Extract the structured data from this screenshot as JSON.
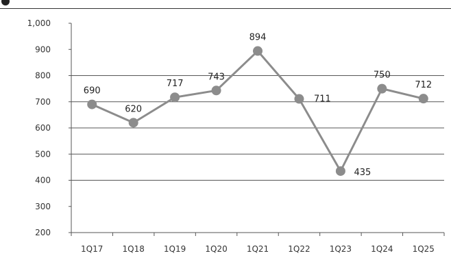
{
  "chart_data": {
    "type": "line",
    "title": "",
    "xlabel": "",
    "ylabel": "",
    "categories": [
      "1Q17",
      "1Q18",
      "1Q19",
      "1Q20",
      "1Q21",
      "1Q22",
      "1Q23",
      "1Q24",
      "1Q25"
    ],
    "series": [
      {
        "values": [
          690,
          620,
          717,
          743,
          894,
          711,
          435,
          750,
          712
        ]
      }
    ],
    "data_labels": [
      "690",
      "620",
      "717",
      "743",
      "894",
      "711",
      "435",
      "750",
      "712"
    ],
    "ylim": [
      200,
      1000
    ],
    "yticks": [
      200,
      300,
      400,
      500,
      600,
      700,
      800,
      900,
      1000
    ],
    "ytick_labels": [
      "200",
      "300",
      "400",
      "500",
      "600",
      "700",
      "800",
      "900",
      "1,000"
    ],
    "grid": true,
    "legend": "none",
    "colors": {
      "line": "#8c8c8c",
      "marker": "#8c8c8c",
      "grid": "#555555",
      "axis": "#555555"
    }
  }
}
